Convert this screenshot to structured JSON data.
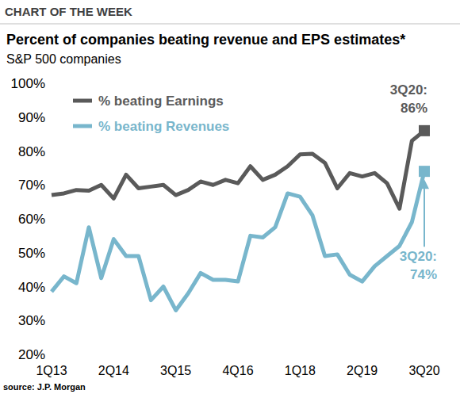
{
  "chart_data": {
    "type": "line",
    "header": "CHART OF THE WEEK",
    "title": "Percent of companies beating revenue and EPS estimates*",
    "subtitle": "S&P 500 companies",
    "source": "source: J.P. Morgan",
    "categories": [
      "1Q13",
      null,
      null,
      null,
      null,
      "2Q14",
      null,
      null,
      null,
      null,
      "3Q15",
      null,
      null,
      null,
      null,
      "4Q16",
      null,
      null,
      null,
      null,
      "1Q18",
      null,
      null,
      null,
      null,
      "2Q19",
      null,
      null,
      null,
      null,
      "3Q20"
    ],
    "series": [
      {
        "name": "% beating Earnings",
        "color": "#5a5a5a",
        "values": [
          67,
          67.5,
          68.5,
          68.3,
          70,
          66,
          73,
          69,
          69.5,
          70,
          67,
          68.5,
          71,
          70,
          71.5,
          70.5,
          75.5,
          71.5,
          73,
          75.5,
          79,
          79.2,
          76.5,
          69,
          73.5,
          72.5,
          73.5,
          70.5,
          63,
          83,
          86
        ],
        "annotation": [
          "3Q20:",
          "86%"
        ]
      },
      {
        "name": "% beating Revenues",
        "color": "#78b6cc",
        "values": [
          38.5,
          43,
          41,
          57.5,
          42.5,
          54,
          49,
          49,
          36,
          40,
          33,
          38,
          44,
          42,
          42,
          41.5,
          55,
          54.5,
          57.5,
          67.5,
          66.5,
          61,
          49,
          49.5,
          43.5,
          41.5,
          46,
          49,
          52,
          59,
          74
        ],
        "annotation": [
          "3Q20:",
          "74%"
        ]
      }
    ],
    "ylim": [
      20,
      100
    ],
    "yticks": [
      {
        "value": 20,
        "label": "20%"
      },
      {
        "value": 30,
        "label": "30%"
      },
      {
        "value": 40,
        "label": "40%"
      },
      {
        "value": 50,
        "label": "50%"
      },
      {
        "value": 60,
        "label": "60%"
      },
      {
        "value": 70,
        "label": "70%"
      },
      {
        "value": 80,
        "label": "80%"
      },
      {
        "value": 90,
        "label": "90%"
      },
      {
        "value": 100,
        "label": "100%"
      }
    ],
    "grid": false,
    "legend": "top-left"
  }
}
